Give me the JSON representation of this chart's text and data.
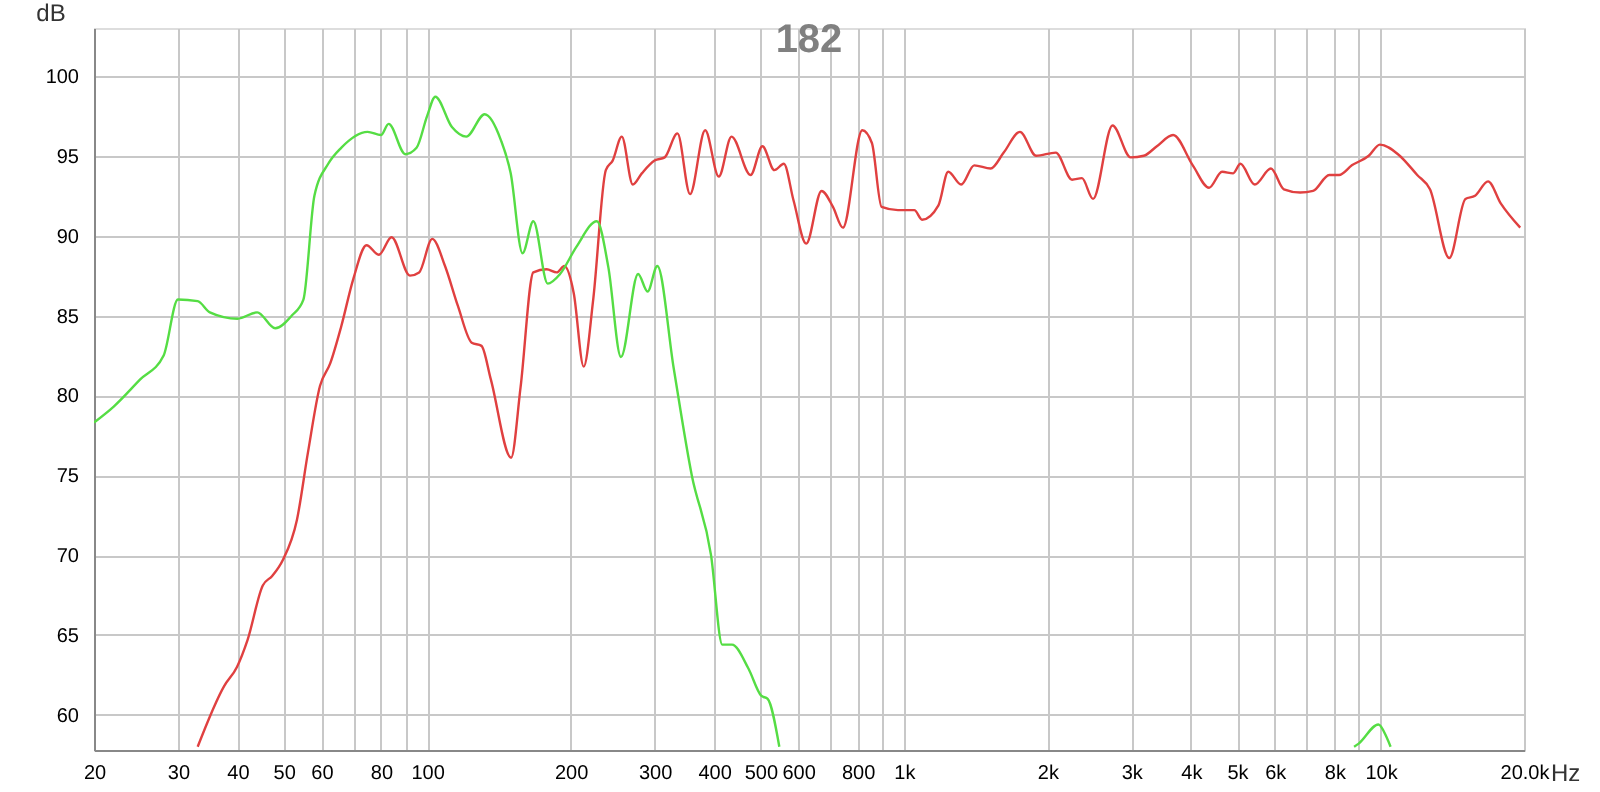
{
  "chart_data": {
    "type": "line",
    "title": "182",
    "ylabel": "dB",
    "log": "x",
    "grid": true,
    "xlim": [
      20,
      20000
    ],
    "ylim": [
      57.8,
      103
    ],
    "xticks": [
      20,
      30,
      40,
      50,
      60,
      {
        "value": 70,
        "label": null
      },
      80,
      {
        "value": 90,
        "label": null
      },
      100,
      200,
      300,
      400,
      500,
      600,
      {
        "value": 700,
        "label": null
      },
      800,
      {
        "value": 900,
        "label": null
      },
      {
        "value": 1000,
        "label": "1k"
      },
      {
        "value": 2000,
        "label": "2k"
      },
      {
        "value": 3000,
        "label": "3k"
      },
      {
        "value": 4000,
        "label": "4k"
      },
      {
        "value": 5000,
        "label": "5k"
      },
      {
        "value": 6000,
        "label": "6k"
      },
      {
        "value": 7000,
        "label": null
      },
      {
        "value": 8000,
        "label": "8k"
      },
      {
        "value": 9000,
        "label": null
      },
      {
        "value": 10000,
        "label": "10k"
      },
      {
        "value": 20000,
        "label": "20.0k"
      }
    ],
    "xlabel": "Hz",
    "yticks": [
      60,
      65,
      70,
      75,
      80,
      85,
      90,
      95,
      100
    ],
    "series": [
      {
        "color": "#e04040",
        "x": [
          33,
          37.5,
          39.9,
          42,
          45.2,
          47.3,
          49.8,
          53.3,
          56.2,
          59.6,
          62.6,
          66,
          70,
          74.6,
          79.2,
          84.2,
          92,
          96.2,
          102.5,
          109,
          116,
          124,
          130,
          136,
          150,
          157,
          167,
          178,
          187,
          194,
          203,
          213,
          223,
          237,
          245,
          256,
          270,
          282,
          300,
          315,
          335,
          356,
          383,
          409,
          435,
          477,
          505,
          535,
          560,
          587,
          624,
          672,
          710,
          745,
          818,
          857,
          898,
          972,
          1052,
          1092,
          1182,
          1239,
          1319,
          1405,
          1521,
          1620,
          1752,
          1895,
          2083,
          2254,
          2364,
          2494,
          2740,
          2992,
          3187,
          3395,
          3672,
          4038,
          4368,
          4651,
          4908,
          5083,
          5447,
          5890,
          6270,
          6784,
          7220,
          7807,
          8184,
          8707,
          9449,
          9969,
          10880,
          11940,
          12700,
          13940,
          15070,
          15790,
          16810,
          17890,
          19640
        ],
        "values": [
          58.0,
          61.8,
          63.0,
          64.7,
          68.1,
          68.7,
          69.7,
          72.2,
          76.4,
          80.6,
          82.0,
          84.3,
          87.3,
          89.4,
          88.8,
          89.9,
          87.5,
          87.7,
          89.8,
          88.1,
          85.6,
          83.3,
          83.1,
          81.0,
          76.1,
          80.5,
          87.7,
          87.9,
          87.7,
          88.1,
          86.4,
          81.8,
          86.0,
          94.1,
          94.7,
          96.2,
          93.2,
          93.9,
          94.7,
          94.9,
          96.4,
          92.6,
          96.6,
          93.7,
          96.2,
          93.8,
          95.6,
          94.1,
          94.5,
          92.2,
          89.5,
          92.8,
          91.8,
          90.5,
          96.6,
          95.8,
          91.8,
          91.6,
          91.6,
          91.0,
          91.9,
          94.0,
          93.2,
          94.4,
          94.2,
          95.2,
          96.5,
          95.0,
          95.2,
          93.5,
          93.6,
          92.3,
          96.9,
          94.9,
          95.0,
          95.6,
          96.3,
          94.4,
          93.0,
          94.0,
          93.9,
          94.5,
          93.2,
          94.2,
          92.9,
          92.7,
          92.8,
          93.8,
          93.8,
          94.4,
          95.0,
          95.7,
          95.1,
          93.8,
          92.9,
          88.6,
          92.3,
          92.5,
          93.4,
          92.0,
          90.5
        ]
      },
      {
        "color": "#55dd44",
        "x": [
          20,
          22,
          25,
          28,
          30,
          33,
          35,
          40,
          44,
          48,
          52,
          55,
          58,
          62,
          66,
          75,
          80,
          83,
          90,
          95,
          100,
          104,
          112.7,
          120.8,
          132,
          142.7,
          149.7,
          158.5,
          167,
          179,
          190,
          205.6,
          227,
          240,
          255,
          277,
          290,
          304,
          329,
          359,
          394,
          416,
          436,
          472,
          502,
          518,
          548,
          2000,
          8800,
          9000,
          9900,
          10300,
          10500
        ],
        "values": [
          78.3,
          79.3,
          81,
          82.5,
          86,
          85.9,
          85.2,
          84.8,
          85.2,
          84.2,
          85,
          86,
          92.5,
          94.5,
          95.5,
          96.5,
          96.3,
          97,
          95.1,
          95.5,
          97.5,
          98.7,
          96.8,
          96.2,
          97.6,
          96.0,
          93.9,
          88.9,
          90.9,
          87.0,
          87.6,
          89.3,
          90.9,
          88.0,
          82.4,
          87.6,
          86.5,
          88.1,
          81.7,
          75.0,
          70.0,
          64.4,
          64.4,
          62.9,
          61.2,
          61.0,
          58.0,
          null,
          58.0,
          58.2,
          59.4,
          58.6,
          58.0
        ]
      }
    ]
  }
}
